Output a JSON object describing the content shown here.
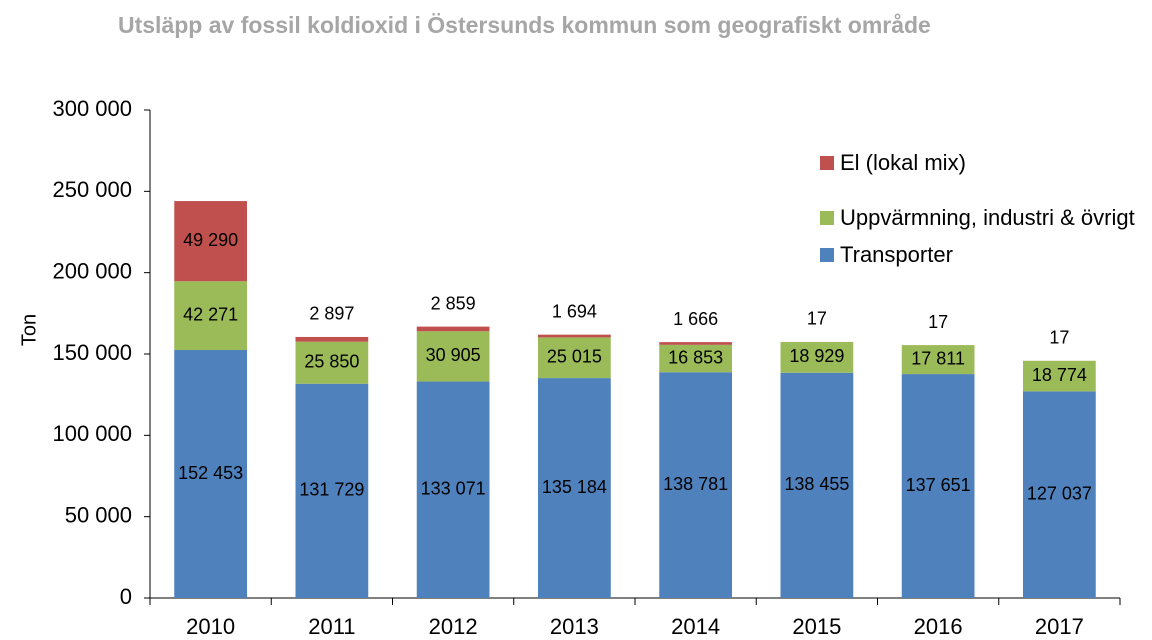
{
  "chart_data": {
    "type": "bar",
    "stacked": true,
    "title": "Utsläpp av fossil koldioxid i Östersunds kommun som geografiskt område",
    "ylabel": "Ton",
    "categories": [
      "2010",
      "2011",
      "2012",
      "2013",
      "2014",
      "2015",
      "2016",
      "2017"
    ],
    "series": [
      {
        "name": "Transporter",
        "color": "#4f81bd",
        "values": [
          152453,
          131729,
          133071,
          135184,
          138781,
          138455,
          137651,
          127037
        ],
        "value_labels": [
          "152 453",
          "131 729",
          "133 071",
          "135 184",
          "138 781",
          "138 455",
          "137 651",
          "127 037"
        ]
      },
      {
        "name": "Uppvärmning, industri & övrigt",
        "color": "#9bbb59",
        "values": [
          42271,
          25850,
          30905,
          25015,
          16853,
          18929,
          17811,
          18774
        ],
        "value_labels": [
          "42 271",
          "25 850",
          "30 905",
          "25 015",
          "16 853",
          "18 929",
          "17 811",
          "18 774"
        ]
      },
      {
        "name": "El (lokal mix)",
        "color": "#c0504d",
        "values": [
          49290,
          2897,
          2859,
          1694,
          1666,
          17,
          17,
          17
        ],
        "value_labels": [
          "49 290",
          "2 897",
          "2 859",
          "1 694",
          "1 666",
          "17",
          "17",
          "17"
        ]
      }
    ],
    "ylim": [
      0,
      300000
    ],
    "yticks": [
      0,
      {
        "value": 50000,
        "label": "50 000"
      },
      {
        "value": 100000,
        "label": "100 000"
      },
      {
        "value": 150000,
        "label": "150 000"
      },
      {
        "value": 200000,
        "label": "200 000"
      },
      {
        "value": 250000,
        "label": "250 000"
      },
      {
        "value": 300000,
        "label": "300 000"
      }
    ],
    "grid": false
  }
}
